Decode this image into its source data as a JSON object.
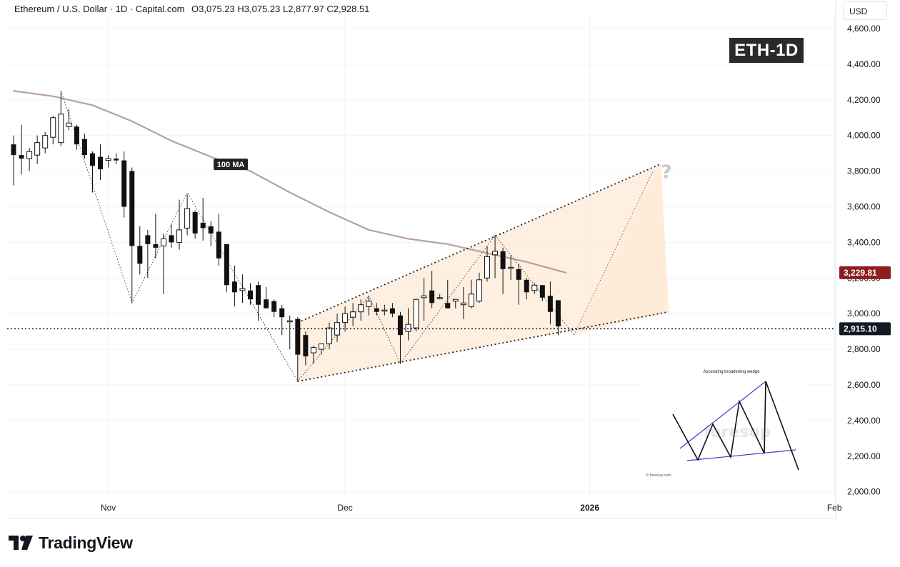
{
  "header": {
    "symbol": "Ethereum / U.S. Dollar · 1D · Capital.com",
    "ohlc": "O3,075.23 H3,075.23 L2,877.97 C2,928.51"
  },
  "currency_button": "USD",
  "badge": "ETH-1D",
  "brand": "TradingView",
  "chart_data": {
    "type": "candlestick",
    "symbol": "ETH/USD",
    "interval": "1D",
    "x_ticks": [
      "Nov",
      "Dec",
      "2026",
      "Feb"
    ],
    "y_ticks": [
      "4,600.00",
      "4,400.00",
      "4,200.00",
      "4,000.00",
      "3,800.00",
      "3,600.00",
      "3,400.00",
      "3,200.00",
      "3,000.00",
      "2,800.00",
      "2,600.00",
      "2,400.00",
      "2,200.00",
      "2,000.00"
    ],
    "ylim": [
      1960,
      4780
    ],
    "grid": true,
    "price_label_ma": "3,229.81",
    "price_label_current": "2,915.10",
    "current_price": 2915.1,
    "ma_value_label": 3229.81,
    "ma_label": "100 MA",
    "colors": {
      "candle": "#111111",
      "ma": "#b8a0a0",
      "wedge_fill": "#fde9d6",
      "ma_tag": "#8f1d1d",
      "price_tag": "#131722"
    },
    "candles": [
      {
        "date": "2025-10-20",
        "o": 3950,
        "h": 4000,
        "l": 3720,
        "c": 3890
      },
      {
        "date": "2025-10-21",
        "o": 3890,
        "h": 4060,
        "l": 3780,
        "c": 3870
      },
      {
        "date": "2025-10-22",
        "o": 3870,
        "h": 3930,
        "l": 3800,
        "c": 3910
      },
      {
        "date": "2025-10-23",
        "o": 3890,
        "h": 4000,
        "l": 3840,
        "c": 3960
      },
      {
        "date": "2025-10-24",
        "o": 3930,
        "h": 4020,
        "l": 3900,
        "c": 4000
      },
      {
        "date": "2025-10-25",
        "o": 3990,
        "h": 4110,
        "l": 3950,
        "c": 4100
      },
      {
        "date": "2025-10-26",
        "o": 3960,
        "h": 4250,
        "l": 3940,
        "c": 4120
      },
      {
        "date": "2025-10-27",
        "o": 4050,
        "h": 4150,
        "l": 4030,
        "c": 4070
      },
      {
        "date": "2025-10-28",
        "o": 4050,
        "h": 4060,
        "l": 3920,
        "c": 3950
      },
      {
        "date": "2025-10-29",
        "o": 3980,
        "h": 4010,
        "l": 3870,
        "c": 3890
      },
      {
        "date": "2025-10-30",
        "o": 3900,
        "h": 3910,
        "l": 3680,
        "c": 3830
      },
      {
        "date": "2025-10-31",
        "o": 3880,
        "h": 3950,
        "l": 3750,
        "c": 3810
      },
      {
        "date": "2025-11-01",
        "o": 3860,
        "h": 3890,
        "l": 3820,
        "c": 3870
      },
      {
        "date": "2025-11-02",
        "o": 3870,
        "h": 3900,
        "l": 3840,
        "c": 3860
      },
      {
        "date": "2025-11-03",
        "o": 3860,
        "h": 3910,
        "l": 3540,
        "c": 3600
      },
      {
        "date": "2025-11-04",
        "o": 3800,
        "h": 3820,
        "l": 3060,
        "c": 3380
      },
      {
        "date": "2025-11-05",
        "o": 3380,
        "h": 3490,
        "l": 3220,
        "c": 3280
      },
      {
        "date": "2025-11-06",
        "o": 3440,
        "h": 3470,
        "l": 3200,
        "c": 3390
      },
      {
        "date": "2025-11-07",
        "o": 3390,
        "h": 3560,
        "l": 3310,
        "c": 3370
      },
      {
        "date": "2025-11-08",
        "o": 3380,
        "h": 3450,
        "l": 3110,
        "c": 3420
      },
      {
        "date": "2025-11-09",
        "o": 3440,
        "h": 3500,
        "l": 3370,
        "c": 3400
      },
      {
        "date": "2025-11-10",
        "o": 3400,
        "h": 3640,
        "l": 3360,
        "c": 3470
      },
      {
        "date": "2025-11-11",
        "o": 3480,
        "h": 3670,
        "l": 3440,
        "c": 3590
      },
      {
        "date": "2025-11-12",
        "o": 3570,
        "h": 3580,
        "l": 3420,
        "c": 3450
      },
      {
        "date": "2025-11-13",
        "o": 3510,
        "h": 3650,
        "l": 3410,
        "c": 3480
      },
      {
        "date": "2025-11-14",
        "o": 3490,
        "h": 3520,
        "l": 3380,
        "c": 3450
      },
      {
        "date": "2025-11-15",
        "o": 3460,
        "h": 3560,
        "l": 3270,
        "c": 3310
      },
      {
        "date": "2025-11-16",
        "o": 3390,
        "h": 3390,
        "l": 3120,
        "c": 3160
      },
      {
        "date": "2025-11-17",
        "o": 3180,
        "h": 3270,
        "l": 3040,
        "c": 3120
      },
      {
        "date": "2025-11-18",
        "o": 3130,
        "h": 3220,
        "l": 3060,
        "c": 3140
      },
      {
        "date": "2025-11-19",
        "o": 3130,
        "h": 3170,
        "l": 3050,
        "c": 3080
      },
      {
        "date": "2025-11-20",
        "o": 3160,
        "h": 3180,
        "l": 2960,
        "c": 3050
      },
      {
        "date": "2025-11-21",
        "o": 3080,
        "h": 3150,
        "l": 3030,
        "c": 3030
      },
      {
        "date": "2025-11-22",
        "o": 3070,
        "h": 3080,
        "l": 2980,
        "c": 3010
      },
      {
        "date": "2025-11-23",
        "o": 3030,
        "h": 3050,
        "l": 2880,
        "c": 2980
      },
      {
        "date": "2025-11-24",
        "o": 2960,
        "h": 2990,
        "l": 2800,
        "c": 2960
      },
      {
        "date": "2025-11-25",
        "o": 2970,
        "h": 2980,
        "l": 2620,
        "c": 2770
      },
      {
        "date": "2025-11-26",
        "o": 2880,
        "h": 2900,
        "l": 2710,
        "c": 2760
      },
      {
        "date": "2025-11-27",
        "o": 2780,
        "h": 2820,
        "l": 2720,
        "c": 2810
      },
      {
        "date": "2025-11-28",
        "o": 2800,
        "h": 2830,
        "l": 2770,
        "c": 2830
      },
      {
        "date": "2025-11-29",
        "o": 2830,
        "h": 2950,
        "l": 2800,
        "c": 2920
      },
      {
        "date": "2025-11-30",
        "o": 2880,
        "h": 3000,
        "l": 2840,
        "c": 2950
      },
      {
        "date": "2025-12-01",
        "o": 2950,
        "h": 3040,
        "l": 2900,
        "c": 3000
      },
      {
        "date": "2025-12-02",
        "o": 2980,
        "h": 3060,
        "l": 2930,
        "c": 3010
      },
      {
        "date": "2025-12-03",
        "o": 3010,
        "h": 3080,
        "l": 2960,
        "c": 3050
      },
      {
        "date": "2025-12-04",
        "o": 3040,
        "h": 3100,
        "l": 2990,
        "c": 3070
      },
      {
        "date": "2025-12-05",
        "o": 3030,
        "h": 3060,
        "l": 2990,
        "c": 3010
      },
      {
        "date": "2025-12-06",
        "o": 3020,
        "h": 3050,
        "l": 2990,
        "c": 3020
      },
      {
        "date": "2025-12-07",
        "o": 3030,
        "h": 3060,
        "l": 2980,
        "c": 3000
      },
      {
        "date": "2025-12-08",
        "o": 2990,
        "h": 3010,
        "l": 2720,
        "c": 2880
      },
      {
        "date": "2025-12-09",
        "o": 2900,
        "h": 3030,
        "l": 2850,
        "c": 2940
      },
      {
        "date": "2025-12-10",
        "o": 2920,
        "h": 3080,
        "l": 2900,
        "c": 3080
      },
      {
        "date": "2025-12-11",
        "o": 3090,
        "h": 3200,
        "l": 2960,
        "c": 3100
      },
      {
        "date": "2025-12-12",
        "o": 3130,
        "h": 3240,
        "l": 3030,
        "c": 3060
      },
      {
        "date": "2025-12-13",
        "o": 3090,
        "h": 3110,
        "l": 3080,
        "c": 3090
      },
      {
        "date": "2025-12-14",
        "o": 3060,
        "h": 3190,
        "l": 3040,
        "c": 3030
      },
      {
        "date": "2025-12-15",
        "o": 3070,
        "h": 3080,
        "l": 3030,
        "c": 3080
      },
      {
        "date": "2025-12-16",
        "o": 3050,
        "h": 3150,
        "l": 2970,
        "c": 3060
      },
      {
        "date": "2025-12-17",
        "o": 3040,
        "h": 3190,
        "l": 3030,
        "c": 3110
      },
      {
        "date": "2025-12-18",
        "o": 3070,
        "h": 3230,
        "l": 3060,
        "c": 3190
      },
      {
        "date": "2025-12-19",
        "o": 3200,
        "h": 3380,
        "l": 3180,
        "c": 3320
      },
      {
        "date": "2025-12-20",
        "o": 3330,
        "h": 3440,
        "l": 3200,
        "c": 3350
      },
      {
        "date": "2025-12-21",
        "o": 3350,
        "h": 3370,
        "l": 3110,
        "c": 3250
      },
      {
        "date": "2025-12-22",
        "o": 3260,
        "h": 3330,
        "l": 3190,
        "c": 3260
      },
      {
        "date": "2025-12-23",
        "o": 3250,
        "h": 3280,
        "l": 3050,
        "c": 3190
      },
      {
        "date": "2025-12-24",
        "o": 3190,
        "h": 3200,
        "l": 3080,
        "c": 3120
      },
      {
        "date": "2025-12-25",
        "o": 3130,
        "h": 3170,
        "l": 3110,
        "c": 3160
      },
      {
        "date": "2025-12-26",
        "o": 3160,
        "h": 3160,
        "l": 3070,
        "c": 3090
      },
      {
        "date": "2025-12-27",
        "o": 3100,
        "h": 3180,
        "l": 2940,
        "c": 3010
      },
      {
        "date": "2025-12-28",
        "o": 3075.23,
        "h": 3075.23,
        "l": 2877.97,
        "c": 2928.51
      }
    ],
    "ma_100": [
      {
        "date": "2025-10-20",
        "v": 4250
      },
      {
        "date": "2025-10-25",
        "v": 4220
      },
      {
        "date": "2025-10-30",
        "v": 4170
      },
      {
        "date": "2025-11-04",
        "v": 4080
      },
      {
        "date": "2025-11-09",
        "v": 3970
      },
      {
        "date": "2025-11-14",
        "v": 3880
      },
      {
        "date": "2025-11-19",
        "v": 3800
      },
      {
        "date": "2025-11-24",
        "v": 3680
      },
      {
        "date": "2025-11-29",
        "v": 3570
      },
      {
        "date": "2025-12-04",
        "v": 3470
      },
      {
        "date": "2025-12-09",
        "v": 3420
      },
      {
        "date": "2025-12-14",
        "v": 3390
      },
      {
        "date": "2025-12-19",
        "v": 3340
      },
      {
        "date": "2025-12-24",
        "v": 3290
      },
      {
        "date": "2025-12-29",
        "v": 3229.81
      }
    ],
    "wedge": {
      "upper": [
        {
          "date": "2025-11-25",
          "v": 2950
        },
        {
          "date": "2026-01-10",
          "v": 3840
        }
      ],
      "lower": [
        {
          "date": "2025-11-25",
          "v": 2620
        },
        {
          "date": "2026-01-11",
          "v": 3010
        }
      ]
    },
    "projection_path": [
      {
        "date": "2025-12-30",
        "v": 2880
      },
      {
        "date": "2026-01-09",
        "v": 3800
      }
    ],
    "swing_zigzag": [
      {
        "date": "2025-10-26",
        "v": 4250
      },
      {
        "date": "2025-11-04",
        "v": 3060
      },
      {
        "date": "2025-11-11",
        "v": 3680
      },
      {
        "date": "2025-11-25",
        "v": 2620
      },
      {
        "date": "2025-12-04",
        "v": 3100
      },
      {
        "date": "2025-12-08",
        "v": 2720
      },
      {
        "date": "2025-12-20",
        "v": 3440
      },
      {
        "date": "2025-12-30",
        "v": 2880
      }
    ],
    "date_axis": {
      "start": "2025-10-20",
      "ticks": [
        {
          "label": "Nov",
          "date": "2025-11-01"
        },
        {
          "label": "Dec",
          "date": "2025-12-01"
        },
        {
          "label": "2026",
          "date": "2026-01-01"
        },
        {
          "label": "Feb",
          "date": "2026-02-01"
        }
      ]
    }
  },
  "inset": {
    "title": "Ascending broadening wedge",
    "credit": "© foresop.com",
    "watermark": "foresop",
    "question_mark": "?"
  }
}
